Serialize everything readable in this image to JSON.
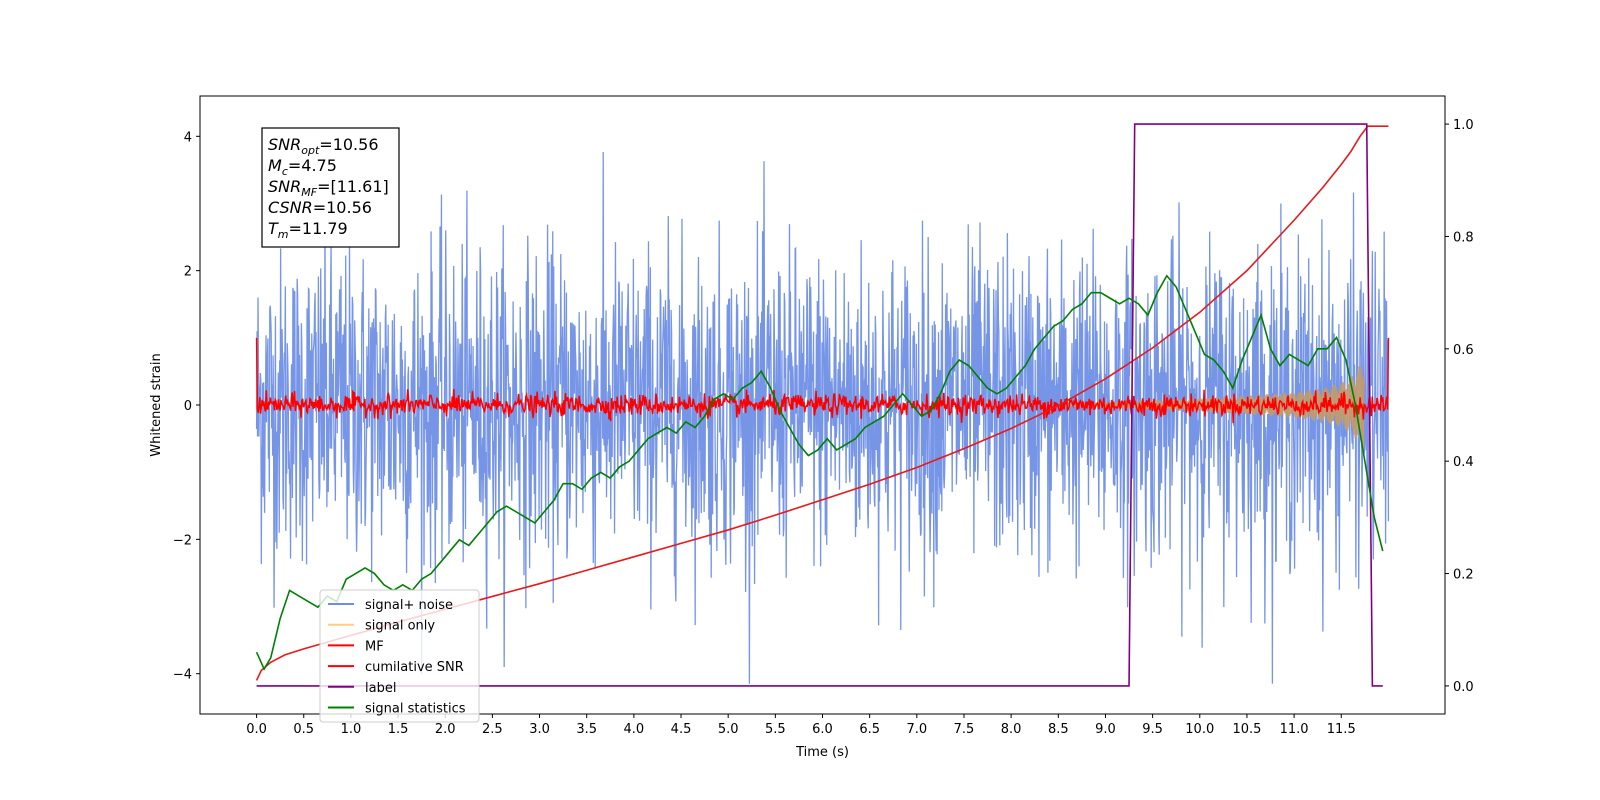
{
  "chart_data": {
    "type": "line",
    "xlabel": "Time (s)",
    "ylabel": "Whitened strain",
    "xlim": [
      -0.6,
      12.6
    ],
    "ylim": [
      -4.6,
      4.6
    ],
    "y2lim": [
      -0.05,
      1.05
    ],
    "xticks": [
      0.0,
      0.5,
      1.0,
      1.5,
      2.0,
      2.5,
      3.0,
      3.5,
      4.0,
      4.5,
      5.0,
      5.5,
      6.0,
      6.5,
      7.0,
      7.5,
      8.0,
      8.5,
      9.0,
      9.5,
      10.0,
      10.5,
      11.0,
      11.5
    ],
    "xtick_labels": [
      "0.0",
      "0.5",
      "1.0",
      "1.5",
      "2.0",
      "2.5",
      "3.0",
      "3.5",
      "4.0",
      "4.5",
      "5.0",
      "5.5",
      "6.0",
      "6.5",
      "7.0",
      "7.5",
      "8.0",
      "8.5",
      "9.0",
      "9.5",
      "10.0",
      "10.5",
      "11.0",
      "11.5"
    ],
    "yticks": [
      -4,
      -2,
      0,
      2,
      4
    ],
    "ytick_labels": [
      "−4",
      "−2",
      "0",
      "2",
      "4"
    ],
    "y2ticks": [
      0.0,
      0.2,
      0.4,
      0.6,
      0.8,
      1.0
    ],
    "y2tick_labels": [
      "0.0",
      "0.2",
      "0.4",
      "0.6",
      "0.8",
      "1.0"
    ],
    "grid": false,
    "legend_position": "lower-left",
    "annotation": {
      "lines": [
        {
          "main": "SNR",
          "sub": "opt",
          "value": "=10.56"
        },
        {
          "main": "M",
          "sub": "c",
          "value": "=4.75"
        },
        {
          "main": "SNR",
          "sub": "MF",
          "value": "=[11.61]"
        },
        {
          "main": "CSNR",
          "sub": "",
          "value": "=10.56"
        },
        {
          "main": "T",
          "sub": "m",
          "value": "=11.79"
        }
      ]
    },
    "series": [
      {
        "name": "signal+ noise",
        "color": "#6f8fe6",
        "axis": "left",
        "style": "noise",
        "x_range": [
          0.0,
          12.0
        ],
        "amplitude_sd": 1.15,
        "y_extent": [
          -4.15,
          4.15
        ]
      },
      {
        "name": "signal only",
        "color": "#c49a68",
        "axis": "left",
        "style": "chirp-envelope",
        "x": [
          8.6,
          9.0,
          9.5,
          10.0,
          10.5,
          11.0,
          11.3,
          11.5,
          11.6,
          11.68,
          11.74
        ],
        "envelope": [
          0.02,
          0.04,
          0.07,
          0.1,
          0.14,
          0.19,
          0.25,
          0.33,
          0.42,
          0.55,
          0.7
        ]
      },
      {
        "name": "MF",
        "color": "#ff0000",
        "axis": "left",
        "style": "mf-noise",
        "x_range": [
          0.0,
          12.0
        ],
        "amplitude_sd": 0.08,
        "edge_value": 1.0
      },
      {
        "name": "cumilative SNR",
        "color": "#e8191b",
        "axis": "left",
        "x": [
          0.0,
          0.05,
          0.15,
          0.3,
          0.5,
          1.0,
          1.5,
          2.0,
          2.5,
          3.0,
          3.5,
          4.0,
          4.5,
          5.0,
          5.5,
          6.0,
          6.5,
          7.0,
          7.5,
          8.0,
          8.5,
          9.0,
          9.5,
          10.0,
          10.5,
          11.0,
          11.3,
          11.5,
          11.6,
          11.7,
          11.78,
          11.82,
          12.0
        ],
        "y": [
          -4.1,
          -3.95,
          -3.83,
          -3.72,
          -3.63,
          -3.43,
          -3.23,
          -3.04,
          -2.85,
          -2.66,
          -2.46,
          -2.26,
          -2.06,
          -1.86,
          -1.64,
          -1.41,
          -1.18,
          -0.93,
          -0.65,
          -0.35,
          -0.01,
          0.39,
          0.85,
          1.38,
          2.0,
          2.75,
          3.23,
          3.58,
          3.77,
          4.0,
          4.15,
          4.15,
          4.15
        ]
      },
      {
        "name": "label",
        "color": "#800080",
        "axis": "right",
        "x": [
          0.0,
          9.25,
          9.31,
          11.77,
          11.83,
          11.94
        ],
        "y": [
          0.0,
          0.0,
          1.0,
          1.0,
          0.0,
          0.0
        ]
      },
      {
        "name": "signal statistics",
        "color": "#008000",
        "axis": "right",
        "x": [
          0.0,
          0.08,
          0.15,
          0.25,
          0.35,
          0.45,
          0.55,
          0.65,
          0.75,
          0.85,
          0.95,
          1.05,
          1.15,
          1.25,
          1.35,
          1.45,
          1.55,
          1.65,
          1.75,
          1.85,
          1.95,
          2.05,
          2.15,
          2.25,
          2.35,
          2.45,
          2.55,
          2.65,
          2.75,
          2.85,
          2.95,
          3.05,
          3.15,
          3.25,
          3.35,
          3.45,
          3.55,
          3.65,
          3.75,
          3.85,
          3.95,
          4.05,
          4.15,
          4.25,
          4.35,
          4.45,
          4.55,
          4.65,
          4.75,
          4.85,
          4.95,
          5.05,
          5.15,
          5.25,
          5.35,
          5.45,
          5.55,
          5.65,
          5.75,
          5.85,
          5.95,
          6.05,
          6.15,
          6.25,
          6.35,
          6.45,
          6.55,
          6.65,
          6.75,
          6.85,
          6.95,
          7.05,
          7.15,
          7.25,
          7.35,
          7.45,
          7.55,
          7.65,
          7.75,
          7.85,
          7.95,
          8.05,
          8.15,
          8.25,
          8.35,
          8.45,
          8.55,
          8.65,
          8.75,
          8.85,
          8.95,
          9.05,
          9.15,
          9.25,
          9.35,
          9.45,
          9.55,
          9.65,
          9.75,
          9.85,
          9.95,
          10.05,
          10.15,
          10.25,
          10.35,
          10.45,
          10.55,
          10.65,
          10.75,
          10.85,
          10.95,
          11.05,
          11.15,
          11.25,
          11.35,
          11.45,
          11.55,
          11.65,
          11.75,
          11.85,
          11.94
        ],
        "y": [
          0.06,
          0.03,
          0.05,
          0.12,
          0.17,
          0.16,
          0.15,
          0.14,
          0.16,
          0.15,
          0.19,
          0.2,
          0.21,
          0.2,
          0.18,
          0.17,
          0.18,
          0.17,
          0.19,
          0.2,
          0.22,
          0.24,
          0.26,
          0.25,
          0.27,
          0.29,
          0.31,
          0.32,
          0.31,
          0.3,
          0.29,
          0.31,
          0.33,
          0.36,
          0.36,
          0.35,
          0.37,
          0.38,
          0.37,
          0.39,
          0.4,
          0.42,
          0.44,
          0.45,
          0.46,
          0.45,
          0.47,
          0.46,
          0.48,
          0.51,
          0.52,
          0.51,
          0.53,
          0.54,
          0.56,
          0.53,
          0.49,
          0.46,
          0.43,
          0.41,
          0.42,
          0.44,
          0.42,
          0.43,
          0.44,
          0.46,
          0.47,
          0.48,
          0.5,
          0.52,
          0.5,
          0.48,
          0.49,
          0.52,
          0.56,
          0.58,
          0.57,
          0.55,
          0.53,
          0.52,
          0.53,
          0.55,
          0.57,
          0.6,
          0.62,
          0.64,
          0.65,
          0.67,
          0.68,
          0.7,
          0.7,
          0.69,
          0.68,
          0.69,
          0.68,
          0.66,
          0.7,
          0.73,
          0.71,
          0.67,
          0.63,
          0.59,
          0.58,
          0.56,
          0.53,
          0.58,
          0.62,
          0.66,
          0.6,
          0.57,
          0.59,
          0.58,
          0.57,
          0.6,
          0.6,
          0.62,
          0.58,
          0.5,
          0.4,
          0.3,
          0.24
        ]
      }
    ]
  }
}
